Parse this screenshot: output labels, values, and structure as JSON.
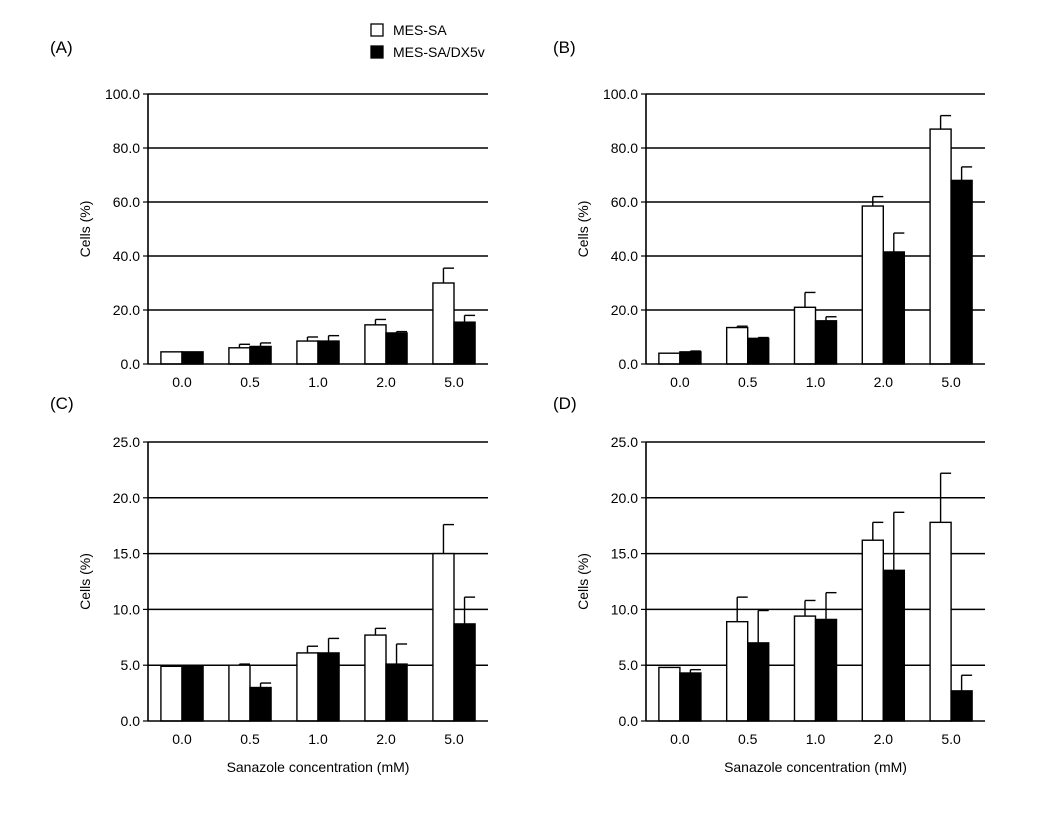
{
  "legend": [
    {
      "label": "MES-SA",
      "fill": "#ffffff"
    },
    {
      "label": "MES-SA/DX5v",
      "fill": "#000000"
    }
  ],
  "chart_data": [
    {
      "type": "bar",
      "panel_label": "(A)",
      "categories": [
        "0.0",
        "0.5",
        "1.0",
        "2.0",
        "5.0"
      ],
      "ylabel": "Cells (%)",
      "xlabel": "",
      "ylim": [
        0,
        100
      ],
      "yticks": [
        "0.0",
        "20.0",
        "40.0",
        "60.0",
        "80.0",
        "100.0"
      ],
      "grid": true,
      "series": [
        {
          "name": "MES-SA",
          "values": [
            4.5,
            6,
            8.5,
            14.5,
            30
          ],
          "errors": [
            0,
            1.3,
            1.5,
            2,
            5.5
          ]
        },
        {
          "name": "MES-SA/DX5v",
          "values": [
            4.5,
            6.5,
            8.5,
            11.5,
            15.5
          ],
          "errors": [
            0,
            1.3,
            2,
            0.5,
            2.5
          ]
        }
      ]
    },
    {
      "type": "bar",
      "panel_label": "(B)",
      "categories": [
        "0.0",
        "0.5",
        "1.0",
        "2.0",
        "5.0"
      ],
      "ylabel": "Cells (%)",
      "xlabel": "",
      "ylim": [
        0,
        100
      ],
      "yticks": [
        "0.0",
        "20.0",
        "40.0",
        "60.0",
        "80.0",
        "100.0"
      ],
      "grid": true,
      "series": [
        {
          "name": "MES-SA",
          "values": [
            4,
            13.5,
            21,
            58.5,
            87
          ],
          "errors": [
            0,
            0.5,
            5.5,
            3.5,
            5
          ]
        },
        {
          "name": "MES-SA/DX5v",
          "values": [
            4.5,
            9.5,
            16,
            41.5,
            68
          ],
          "errors": [
            0.3,
            0.3,
            1.5,
            7,
            5
          ]
        }
      ]
    },
    {
      "type": "bar",
      "panel_label": "(C)",
      "categories": [
        "0.0",
        "0.5",
        "1.0",
        "2.0",
        "5.0"
      ],
      "ylabel": "Cells (%)",
      "xlabel": "Sanazole concentration (mM)",
      "ylim": [
        0,
        25
      ],
      "yticks": [
        "0.0",
        "5.0",
        "10.0",
        "15.0",
        "20.0",
        "25.0"
      ],
      "grid": true,
      "series": [
        {
          "name": "MES-SA",
          "values": [
            4.9,
            5.0,
            6.1,
            7.7,
            15.0
          ],
          "errors": [
            0,
            0.1,
            0.6,
            0.6,
            2.6
          ]
        },
        {
          "name": "MES-SA/DX5v",
          "values": [
            4.9,
            3.0,
            6.1,
            5.1,
            8.7
          ],
          "errors": [
            0,
            0.4,
            1.3,
            1.8,
            2.4
          ]
        }
      ]
    },
    {
      "type": "bar",
      "panel_label": "(D)",
      "categories": [
        "0.0",
        "0.5",
        "1.0",
        "2.0",
        "5.0"
      ],
      "ylabel": "Cells (%)",
      "xlabel": "Sanazole concentration (mM)",
      "ylim": [
        0,
        25
      ],
      "yticks": [
        "0.0",
        "5.0",
        "10.0",
        "15.0",
        "20.0",
        "25.0"
      ],
      "grid": true,
      "series": [
        {
          "name": "MES-SA",
          "values": [
            4.8,
            8.9,
            9.4,
            16.2,
            17.8
          ],
          "errors": [
            0,
            2.2,
            1.4,
            1.6,
            4.4
          ]
        },
        {
          "name": "MES-SA/DX5v",
          "values": [
            4.3,
            7.0,
            9.1,
            13.5,
            2.7
          ],
          "errors": [
            0.3,
            2.9,
            2.4,
            5.2,
            1.4
          ]
        }
      ]
    }
  ]
}
